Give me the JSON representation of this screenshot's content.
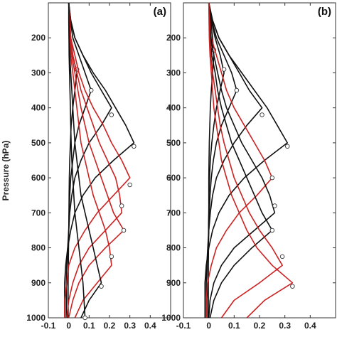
{
  "colors": {
    "black_series": "#111111",
    "red_series": "#cc2222",
    "frame": "#333333"
  },
  "chart_data": [
    {
      "type": "line",
      "panel_label": "(a)",
      "ylabel": "Pressure (hPa)",
      "xlabel": "",
      "y_reversed": true,
      "ylim": [
        1000,
        100
      ],
      "xlim": [
        -0.1,
        0.5
      ],
      "y_ticks": [
        200,
        300,
        400,
        500,
        600,
        700,
        800,
        900,
        1000
      ],
      "x_ticks": [
        -0.1,
        0,
        0.1,
        0.2,
        0.3,
        0.4
      ],
      "x_tick_labels": [
        "-0.1",
        "0",
        "0.1",
        "0.2",
        "0.3",
        "0.4"
      ],
      "pressure_levels": [
        100,
        150,
        200,
        250,
        300,
        350,
        400,
        450,
        500,
        550,
        600,
        650,
        700,
        750,
        800,
        850,
        900,
        950,
        1000
      ],
      "series": [
        {
          "color": "black",
          "peak_pressure": 290,
          "peak_value": 0.04,
          "values": [
            0,
            0.005,
            0.01,
            0.02,
            0.04,
            0.03,
            0.02,
            0.012,
            0.008,
            0.005,
            0.003,
            0.002,
            0.001,
            0,
            -0.001,
            -0.002,
            -0.003,
            -0.003,
            -0.003
          ]
        },
        {
          "color": "black",
          "peak_pressure": 350,
          "peak_value": 0.11,
          "values": [
            0,
            0.008,
            0.02,
            0.05,
            0.08,
            0.11,
            0.08,
            0.05,
            0.03,
            0.02,
            0.01,
            0.005,
            0.002,
            0,
            -0.002,
            -0.003,
            -0.004,
            -0.004,
            -0.004
          ]
        },
        {
          "color": "black",
          "peak_pressure": 420,
          "peak_value": 0.21,
          "values": [
            0,
            0.01,
            0.03,
            0.07,
            0.11,
            0.16,
            0.21,
            0.16,
            0.1,
            0.06,
            0.03,
            0.015,
            0.005,
            0,
            -0.005,
            -0.01,
            -0.012,
            -0.012,
            -0.012
          ]
        },
        {
          "color": "black",
          "peak_pressure": 510,
          "peak_value": 0.32,
          "values": [
            0,
            0.01,
            0.03,
            0.07,
            0.12,
            0.18,
            0.23,
            0.28,
            0.32,
            0.22,
            0.13,
            0.07,
            0.03,
            0.01,
            -0.005,
            -0.015,
            -0.02,
            -0.02,
            -0.02
          ]
        },
        {
          "color": "red",
          "peak_pressure": 620,
          "peak_value": 0.3,
          "values": [
            0,
            0.005,
            0.01,
            0.03,
            0.05,
            0.08,
            0.12,
            0.17,
            0.21,
            0.26,
            0.3,
            0.22,
            0.14,
            0.08,
            0.03,
            0.0,
            -0.01,
            -0.02,
            -0.02
          ]
        },
        {
          "color": "red",
          "peak_pressure": 680,
          "peak_value": 0.26,
          "values": [
            0,
            0.004,
            0.008,
            0.02,
            0.04,
            0.06,
            0.09,
            0.12,
            0.15,
            0.19,
            0.23,
            0.25,
            0.26,
            0.18,
            0.1,
            0.05,
            0.02,
            0.0,
            -0.01
          ]
        },
        {
          "color": "red",
          "peak_pressure": 750,
          "peak_value": 0.27,
          "values": [
            0,
            0.003,
            0.006,
            0.015,
            0.03,
            0.045,
            0.06,
            0.08,
            0.1,
            0.13,
            0.16,
            0.19,
            0.22,
            0.27,
            0.18,
            0.1,
            0.05,
            0.02,
            0.0
          ]
        },
        {
          "color": "red",
          "peak_pressure": 825,
          "peak_value": 0.21,
          "values": [
            0,
            0.002,
            0.004,
            0.01,
            0.02,
            0.03,
            0.04,
            0.05,
            0.06,
            0.08,
            0.1,
            0.12,
            0.15,
            0.18,
            0.2,
            0.21,
            0.14,
            0.07,
            0.03
          ]
        },
        {
          "color": "black",
          "peak_pressure": 910,
          "peak_value": 0.16,
          "values": [
            0,
            0.001,
            0.002,
            0.005,
            0.01,
            0.015,
            0.02,
            0.025,
            0.03,
            0.04,
            0.05,
            0.06,
            0.08,
            0.1,
            0.12,
            0.14,
            0.16,
            0.1,
            0.06
          ]
        },
        {
          "color": "black",
          "peak_pressure": 1000,
          "peak_value": 0.08,
          "values": [
            0,
            0,
            0.001,
            0.002,
            0.004,
            0.006,
            0.008,
            0.01,
            0.012,
            0.015,
            0.02,
            0.025,
            0.03,
            0.04,
            0.05,
            0.06,
            0.07,
            0.075,
            0.08
          ]
        }
      ]
    },
    {
      "type": "line",
      "panel_label": "(b)",
      "ylabel": "",
      "xlabel": "",
      "y_reversed": true,
      "ylim": [
        1000,
        100
      ],
      "xlim": [
        -0.1,
        0.5
      ],
      "y_ticks": [
        200,
        300,
        400,
        500,
        600,
        700,
        800,
        900,
        1000
      ],
      "x_ticks": [
        -0.1,
        0,
        0.1,
        0.2,
        0.3,
        0.4
      ],
      "x_tick_labels": [
        "-0.1",
        "0",
        "0.1",
        "0.2",
        "0.3",
        "0.4"
      ],
      "pressure_levels": [
        100,
        150,
        200,
        250,
        300,
        350,
        400,
        450,
        500,
        550,
        600,
        650,
        700,
        750,
        800,
        850,
        900,
        950,
        1000
      ],
      "series": [
        {
          "color": "black",
          "peak_pressure": 235,
          "peak_value": 0.02,
          "values": [
            0,
            0.008,
            0.015,
            0.02,
            0.015,
            0.01,
            0.006,
            0.004,
            0.002,
            0.001,
            0,
            0,
            0,
            -0.001,
            -0.001,
            -0.002,
            -0.002,
            -0.002,
            -0.002
          ]
        },
        {
          "color": "black",
          "peak_pressure": 290,
          "peak_value": 0.06,
          "values": [
            0,
            0.01,
            0.025,
            0.045,
            0.06,
            0.045,
            0.03,
            0.02,
            0.012,
            0.006,
            0.003,
            0.001,
            0,
            -0.001,
            -0.002,
            -0.003,
            -0.003,
            -0.003,
            -0.003
          ]
        },
        {
          "color": "black",
          "peak_pressure": 350,
          "peak_value": 0.11,
          "values": [
            0,
            0.012,
            0.03,
            0.06,
            0.09,
            0.11,
            0.08,
            0.05,
            0.03,
            0.018,
            0.01,
            0.005,
            0.002,
            0,
            -0.002,
            -0.003,
            -0.004,
            -0.004,
            -0.004
          ]
        },
        {
          "color": "black",
          "peak_pressure": 420,
          "peak_value": 0.21,
          "values": [
            0,
            0.015,
            0.04,
            0.08,
            0.12,
            0.16,
            0.21,
            0.15,
            0.1,
            0.06,
            0.03,
            0.015,
            0.006,
            0,
            -0.004,
            -0.008,
            -0.01,
            -0.01,
            -0.01
          ]
        },
        {
          "color": "black",
          "peak_pressure": 510,
          "peak_value": 0.31,
          "values": [
            0,
            0.015,
            0.04,
            0.08,
            0.13,
            0.18,
            0.23,
            0.27,
            0.31,
            0.22,
            0.14,
            0.08,
            0.04,
            0.015,
            0,
            -0.01,
            -0.015,
            -0.015,
            -0.015
          ]
        },
        {
          "color": "red",
          "peak_pressure": 600,
          "peak_value": 0.25,
          "values": [
            0,
            0.005,
            0.01,
            0.03,
            0.05,
            0.07,
            0.1,
            0.14,
            0.18,
            0.22,
            0.25,
            0.19,
            0.12,
            0.07,
            0.03,
            0.01,
            -0.005,
            -0.01,
            -0.01
          ]
        },
        {
          "color": "black",
          "peak_pressure": 680,
          "peak_value": 0.26,
          "values": [
            0,
            0.004,
            0.008,
            0.02,
            0.035,
            0.05,
            0.07,
            0.1,
            0.13,
            0.17,
            0.21,
            0.24,
            0.26,
            0.18,
            0.1,
            0.05,
            0.02,
            0.005,
            0
          ]
        },
        {
          "color": "black",
          "peak_pressure": 750,
          "peak_value": 0.25,
          "values": [
            0,
            0.003,
            0.006,
            0.012,
            0.025,
            0.035,
            0.05,
            0.07,
            0.09,
            0.12,
            0.15,
            0.18,
            0.21,
            0.25,
            0.17,
            0.1,
            0.05,
            0.02,
            0.005
          ]
        },
        {
          "color": "red",
          "peak_pressure": 825,
          "peak_value": 0.29,
          "values": [
            0,
            0.002,
            0.004,
            0.008,
            0.015,
            0.025,
            0.035,
            0.045,
            0.06,
            0.08,
            0.1,
            0.13,
            0.16,
            0.2,
            0.25,
            0.29,
            0.2,
            0.1,
            0.05
          ]
        },
        {
          "color": "red",
          "peak_pressure": 910,
          "peak_value": 0.33,
          "values": [
            0,
            0.001,
            0.002,
            0.005,
            0.01,
            0.015,
            0.02,
            0.03,
            0.04,
            0.05,
            0.07,
            0.09,
            0.12,
            0.15,
            0.19,
            0.25,
            0.33,
            0.22,
            0.15
          ]
        }
      ]
    }
  ]
}
